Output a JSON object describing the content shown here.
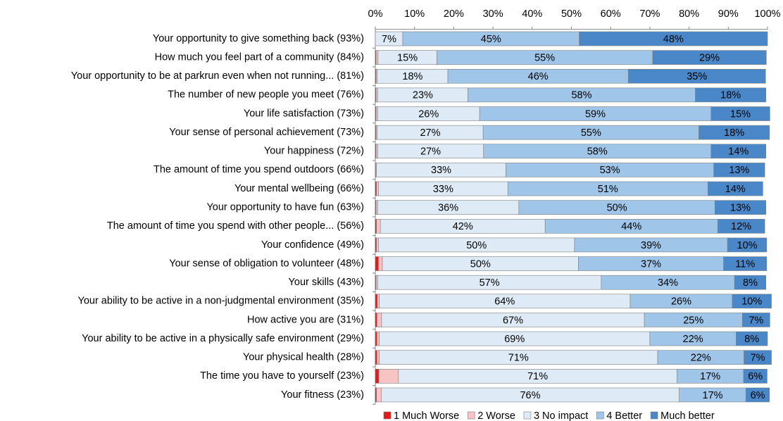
{
  "chart_data": {
    "type": "stacked_bar_horizontal",
    "categories": [
      "Your opportunity to give something back (93%)",
      "How much you feel part of a community (84%)",
      "Your opportunity to be at parkrun even when not running... (81%)",
      "The number of new people you meet (76%)",
      "Your life satisfaction (73%)",
      "Your sense of personal achievement (73%)",
      "Your happiness (72%)",
      "The amount of time you spend outdoors (66%)",
      "Your mental wellbeing (66%)",
      "Your opportunity to have fun (63%)",
      "The amount of time you spend with other people... (56%)",
      "Your confidence (49%)",
      "Your sense of obligation to volunteer (48%)",
      "Your skills (43%)",
      "Your ability to be active in a non-judgmental environment (35%)",
      "How active you are (31%)",
      "Your ability to be active in a physically safe environment (29%)",
      "Your physical health (28%)",
      "The time you have to yourself (23%)",
      "Your fitness (23%)"
    ],
    "series": [
      {
        "name": "1 Much Worse",
        "color": "#e3191c",
        "values": [
          0,
          0.2,
          0.2,
          0.2,
          0.2,
          0.2,
          0.2,
          0.1,
          0.3,
          0.2,
          0.3,
          0.3,
          0.8,
          0.2,
          0.5,
          0.4,
          0.4,
          0.4,
          0.9,
          0.3
        ]
      },
      {
        "name": "2 Worse",
        "color": "#f8c3c3",
        "values": [
          0,
          0.5,
          0.3,
          0.4,
          0.4,
          0.3,
          0.4,
          0.2,
          0.5,
          0.4,
          1.0,
          0.5,
          1.0,
          0.4,
          0.5,
          1.2,
          0.6,
          0.6,
          5.0,
          1.2
        ]
      },
      {
        "name": "3 No impact",
        "color": "#deebf7",
        "values": [
          7,
          15,
          18,
          23,
          26,
          27,
          27,
          33,
          33,
          36,
          42,
          50,
          50,
          57,
          64,
          67,
          69,
          71,
          71,
          76
        ],
        "value_labels": [
          "7%",
          "15%",
          "18%",
          "23%",
          "26%",
          "27%",
          "27%",
          "33%",
          "33%",
          "36%",
          "42%",
          "50%",
          "50%",
          "57%",
          "64%",
          "67%",
          "69%",
          "71%",
          "71%",
          "76%"
        ]
      },
      {
        "name": "4 Better",
        "color": "#9fc5e8",
        "values": [
          45,
          55,
          46,
          58,
          59,
          55,
          58,
          53,
          51,
          50,
          44,
          39,
          37,
          34,
          26,
          25,
          22,
          22,
          17,
          17
        ],
        "value_labels": [
          "45%",
          "55%",
          "46%",
          "58%",
          "59%",
          "55%",
          "58%",
          "53%",
          "51%",
          "50%",
          "44%",
          "39%",
          "37%",
          "34%",
          "26%",
          "25%",
          "22%",
          "22%",
          "17%",
          "17%"
        ]
      },
      {
        "name": "Much better",
        "color": "#4a87c9",
        "values": [
          48,
          29,
          35,
          18,
          15,
          18,
          14,
          13,
          14,
          13,
          12,
          10,
          11,
          8,
          10,
          7,
          8,
          7,
          6,
          6
        ],
        "value_labels": [
          "48%",
          "29%",
          "35%",
          "18%",
          "15%",
          "18%",
          "14%",
          "13%",
          "14%",
          "13%",
          "12%",
          "10%",
          "11%",
          "8%",
          "10%",
          "7%",
          "8%",
          "7%",
          "6%",
          "6%"
        ]
      }
    ],
    "xlim": [
      0,
      100
    ],
    "xticks": [
      {
        "value": 0,
        "label": "0%"
      },
      {
        "value": 10,
        "label": "10%"
      },
      {
        "value": 20,
        "label": "20%"
      },
      {
        "value": 30,
        "label": "30%"
      },
      {
        "value": 40,
        "label": "40%"
      },
      {
        "value": 50,
        "label": "50%"
      },
      {
        "value": 60,
        "label": "60%"
      },
      {
        "value": 70,
        "label": "70%"
      },
      {
        "value": 80,
        "label": "80%"
      },
      {
        "value": 90,
        "label": "90%"
      },
      {
        "value": 100,
        "label": "100%"
      }
    ],
    "legend": "bottom"
  }
}
